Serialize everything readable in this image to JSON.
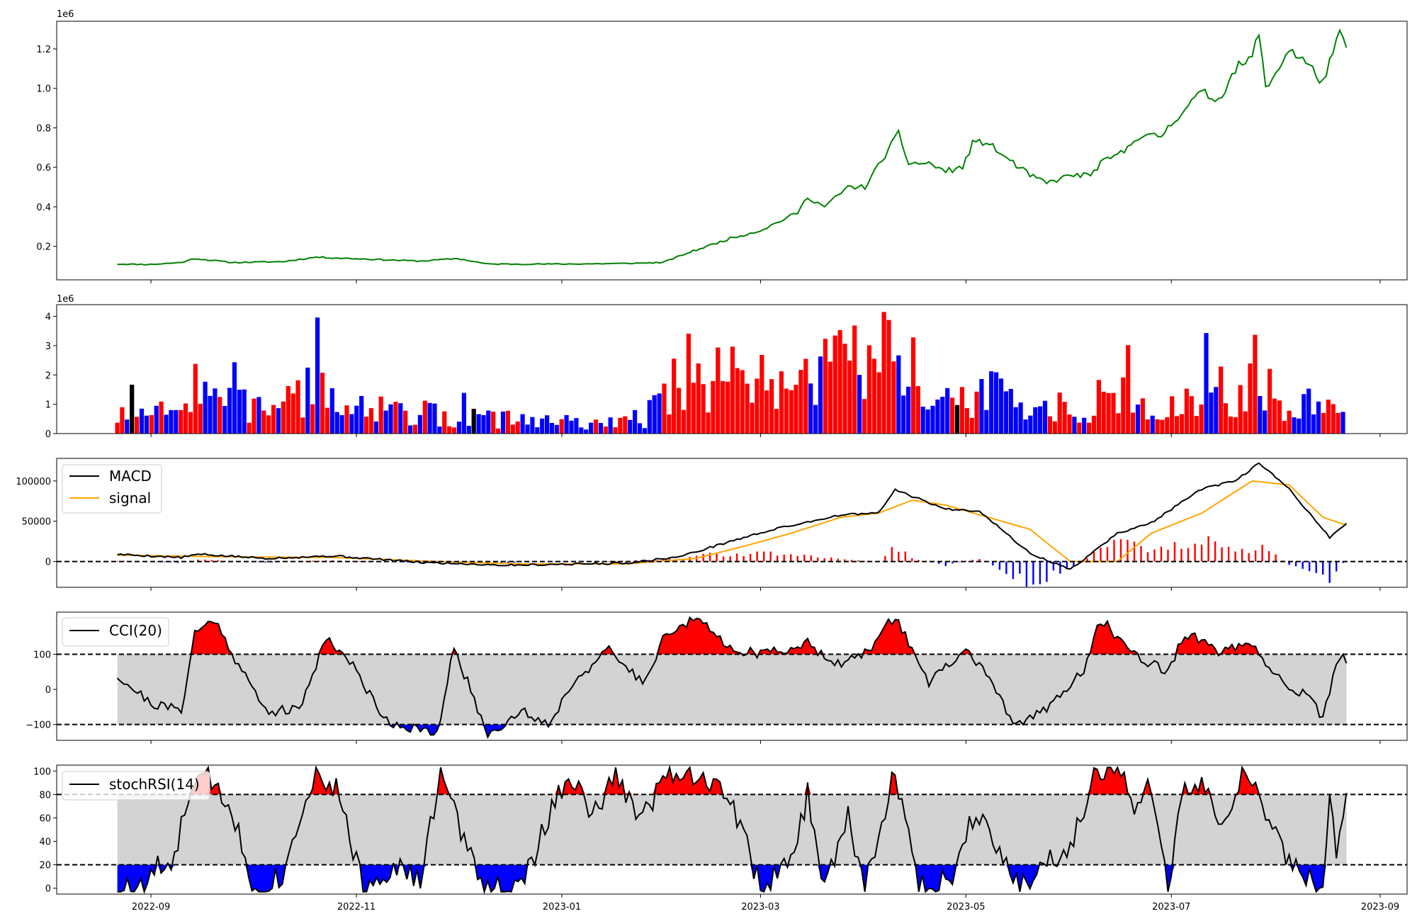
{
  "colors": {
    "price_line": "#008000",
    "up": "#ff0000",
    "down": "#0000ff",
    "neutral": "#000000",
    "macd": "#000000",
    "signal": "#ffa500",
    "band_fill": "#d3d3d3",
    "dashed": "#000000"
  },
  "x_axis": {
    "start": "2022-08-22",
    "end": "2023-08-22",
    "xlim": [
      "2022-08-04",
      "2023-09-09"
    ],
    "ticks": [
      "2022-09-01",
      "2022-11-01",
      "2023-01-01",
      "2023-03-01",
      "2023-05-01",
      "2023-07-01",
      "2023-09-01"
    ],
    "tick_labels": [
      "2022-09",
      "2022-11",
      "2023-01",
      "2023-03",
      "2023-05",
      "2023-07",
      "2023-09"
    ]
  },
  "chart_data": [
    {
      "type": "line",
      "id": "price",
      "offset_label": "1e6",
      "ylim": [
        30000,
        1340000
      ],
      "yticks": [
        200000,
        400000,
        600000,
        800000,
        1000000,
        1200000
      ],
      "ytick_labels": [
        "0.2",
        "0.4",
        "0.6",
        "0.8",
        "1.0",
        "1.2"
      ],
      "points": [
        [
          "2022-08-22",
          110000
        ],
        [
          "2022-09-01",
          108000
        ],
        [
          "2022-09-10",
          118000
        ],
        [
          "2022-09-14",
          138000
        ],
        [
          "2022-09-25",
          118000
        ],
        [
          "2022-10-10",
          122000
        ],
        [
          "2022-10-20",
          145000
        ],
        [
          "2022-11-01",
          137000
        ],
        [
          "2022-11-20",
          125000
        ],
        [
          "2022-12-01",
          138000
        ],
        [
          "2022-12-10",
          110000
        ],
        [
          "2023-01-01",
          110000
        ],
        [
          "2023-01-20",
          113000
        ],
        [
          "2023-01-31",
          118000
        ],
        [
          "2023-02-08",
          170000
        ],
        [
          "2023-02-20",
          240000
        ],
        [
          "2023-03-01",
          280000
        ],
        [
          "2023-03-12",
          370000
        ],
        [
          "2023-03-15",
          450000
        ],
        [
          "2023-03-20",
          400000
        ],
        [
          "2023-03-27",
          500000
        ],
        [
          "2023-04-01",
          500000
        ],
        [
          "2023-04-11",
          770000
        ],
        [
          "2023-04-14",
          620000
        ],
        [
          "2023-04-20",
          620000
        ],
        [
          "2023-04-25",
          580000
        ],
        [
          "2023-04-30",
          600000
        ],
        [
          "2023-05-03",
          720000
        ],
        [
          "2023-05-07",
          730000
        ],
        [
          "2023-05-12",
          660000
        ],
        [
          "2023-05-20",
          560000
        ],
        [
          "2023-05-25",
          520000
        ],
        [
          "2023-06-01",
          560000
        ],
        [
          "2023-06-07",
          560000
        ],
        [
          "2023-06-10",
          620000
        ],
        [
          "2023-06-17",
          680000
        ],
        [
          "2023-06-20",
          750000
        ],
        [
          "2023-06-28",
          760000
        ],
        [
          "2023-07-05",
          900000
        ],
        [
          "2023-07-10",
          980000
        ],
        [
          "2023-07-15",
          940000
        ],
        [
          "2023-07-20",
          1100000
        ],
        [
          "2023-07-25",
          1150000
        ],
        [
          "2023-07-27",
          1300000
        ],
        [
          "2023-07-29",
          990000
        ],
        [
          "2023-08-05",
          1200000
        ],
        [
          "2023-08-10",
          1130000
        ],
        [
          "2023-08-15",
          1030000
        ],
        [
          "2023-08-20",
          1270000
        ],
        [
          "2023-08-22",
          1220000
        ]
      ]
    },
    {
      "type": "bar",
      "id": "volume",
      "offset_label": "1e6",
      "ylim": [
        0,
        4400000
      ],
      "yticks": [
        0,
        1000000,
        2000000,
        3000000,
        4000000
      ],
      "ytick_labels": [
        "0",
        "1",
        "2",
        "3",
        "4"
      ],
      "anchors": [
        [
          "2022-08-22",
          550000
        ],
        [
          "2022-09-10",
          700000
        ],
        [
          "2022-09-15",
          1800000
        ],
        [
          "2022-09-20",
          1200000
        ],
        [
          "2022-10-01",
          850000
        ],
        [
          "2022-10-20",
          1400000
        ],
        [
          "2022-11-10",
          800000
        ],
        [
          "2022-12-01",
          550000
        ],
        [
          "2023-01-01",
          380000
        ],
        [
          "2023-01-25",
          350000
        ],
        [
          "2023-02-05",
          2200000
        ],
        [
          "2023-02-15",
          1800000
        ],
        [
          "2023-03-10",
          1600000
        ],
        [
          "2023-03-20",
          2000000
        ],
        [
          "2023-04-10",
          2400000
        ],
        [
          "2023-04-25",
          1100000
        ],
        [
          "2023-05-10",
          1300000
        ],
        [
          "2023-05-25",
          700000
        ],
        [
          "2023-06-05",
          650000
        ],
        [
          "2023-06-15",
          1200000
        ],
        [
          "2023-06-30",
          800000
        ],
        [
          "2023-07-10",
          1200000
        ],
        [
          "2023-07-25",
          1600000
        ],
        [
          "2023-08-05",
          1000000
        ],
        [
          "2023-08-22",
          850000
        ]
      ]
    },
    {
      "type": "line",
      "id": "macd",
      "ylim": [
        -32000,
        128000
      ],
      "yticks": [
        0,
        50000,
        100000
      ],
      "ytick_labels": [
        "0",
        "50000",
        "100000"
      ],
      "series": [
        {
          "name": "MACD",
          "points": [
            [
              "2022-08-22",
              9000
            ],
            [
              "2022-09-10",
              5000
            ],
            [
              "2022-09-15",
              9000
            ],
            [
              "2022-10-05",
              4000
            ],
            [
              "2022-10-25",
              7000
            ],
            [
              "2022-11-20",
              -1000
            ],
            [
              "2022-12-15",
              -4500
            ],
            [
              "2023-01-20",
              -2000
            ],
            [
              "2023-02-05",
              6000
            ],
            [
              "2023-02-20",
              25000
            ],
            [
              "2023-03-05",
              40000
            ],
            [
              "2023-03-25",
              58000
            ],
            [
              "2023-04-05",
              60000
            ],
            [
              "2023-04-10",
              89000
            ],
            [
              "2023-04-25",
              65000
            ],
            [
              "2023-05-05",
              63000
            ],
            [
              "2023-05-20",
              10000
            ],
            [
              "2023-06-01",
              -10000
            ],
            [
              "2023-06-15",
              35000
            ],
            [
              "2023-06-25",
              48000
            ],
            [
              "2023-07-10",
              90000
            ],
            [
              "2023-07-20",
              100000
            ],
            [
              "2023-07-27",
              122000
            ],
            [
              "2023-08-05",
              90000
            ],
            [
              "2023-08-17",
              30000
            ],
            [
              "2023-08-22",
              47000
            ]
          ]
        },
        {
          "name": "signal",
          "points": [
            [
              "2022-08-22",
              8000
            ],
            [
              "2022-09-20",
              6000
            ],
            [
              "2022-10-25",
              5000
            ],
            [
              "2022-11-25",
              0
            ],
            [
              "2022-12-20",
              -3000
            ],
            [
              "2023-01-20",
              -3000
            ],
            [
              "2023-02-10",
              4000
            ],
            [
              "2023-02-25",
              20000
            ],
            [
              "2023-03-10",
              35000
            ],
            [
              "2023-03-25",
              55000
            ],
            [
              "2023-04-05",
              60000
            ],
            [
              "2023-04-15",
              76000
            ],
            [
              "2023-04-25",
              70000
            ],
            [
              "2023-05-05",
              58000
            ],
            [
              "2023-05-20",
              40000
            ],
            [
              "2023-06-01",
              0
            ],
            [
              "2023-06-15",
              0
            ],
            [
              "2023-06-25",
              35000
            ],
            [
              "2023-07-10",
              60000
            ],
            [
              "2023-07-25",
              100000
            ],
            [
              "2023-08-05",
              95000
            ],
            [
              "2023-08-15",
              55000
            ],
            [
              "2023-08-22",
              45000
            ]
          ]
        }
      ],
      "legend": [
        "MACD",
        "signal"
      ],
      "legend_position": "upper-left"
    },
    {
      "type": "area",
      "id": "cci",
      "ylim": [
        -145,
        220
      ],
      "yticks": [
        -100,
        0,
        100
      ],
      "ytick_labels": [
        "−100",
        "0",
        "100"
      ],
      "bands": [
        -100,
        100
      ],
      "series": [
        {
          "name": "CCI(20)",
          "points": [
            [
              "2022-08-22",
              40
            ],
            [
              "2022-09-01",
              -40
            ],
            [
              "2022-09-10",
              -60
            ],
            [
              "2022-09-14",
              160
            ],
            [
              "2022-09-20",
              200
            ],
            [
              "2022-09-27",
              70
            ],
            [
              "2022-10-05",
              -60
            ],
            [
              "2022-10-15",
              -60
            ],
            [
              "2022-10-23",
              150
            ],
            [
              "2022-10-30",
              80
            ],
            [
              "2022-11-10",
              -90
            ],
            [
              "2022-11-25",
              -130
            ],
            [
              "2022-11-30",
              120
            ],
            [
              "2022-12-10",
              -130
            ],
            [
              "2022-12-20",
              -60
            ],
            [
              "2022-12-28",
              -100
            ],
            [
              "2023-01-05",
              30
            ],
            [
              "2023-01-15",
              110
            ],
            [
              "2023-01-25",
              20
            ],
            [
              "2023-02-01",
              160
            ],
            [
              "2023-02-10",
              200
            ],
            [
              "2023-02-20",
              120
            ],
            [
              "2023-03-01",
              100
            ],
            [
              "2023-03-15",
              130
            ],
            [
              "2023-03-25",
              70
            ],
            [
              "2023-04-01",
              100
            ],
            [
              "2023-04-10",
              210
            ],
            [
              "2023-04-20",
              20
            ],
            [
              "2023-05-01",
              110
            ],
            [
              "2023-05-08",
              40
            ],
            [
              "2023-05-15",
              -110
            ],
            [
              "2023-05-25",
              -50
            ],
            [
              "2023-06-05",
              50
            ],
            [
              "2023-06-10",
              200
            ],
            [
              "2023-06-20",
              100
            ],
            [
              "2023-06-30",
              50
            ],
            [
              "2023-07-05",
              160
            ],
            [
              "2023-07-15",
              110
            ],
            [
              "2023-07-25",
              120
            ],
            [
              "2023-08-01",
              40
            ],
            [
              "2023-08-10",
              -20
            ],
            [
              "2023-08-15",
              -80
            ],
            [
              "2023-08-20",
              100
            ],
            [
              "2023-08-22",
              80
            ]
          ]
        }
      ],
      "legend": [
        "CCI(20)"
      ],
      "legend_position": "upper-left"
    },
    {
      "type": "area",
      "id": "stochrsi",
      "ylim": [
        -5,
        105
      ],
      "yticks": [
        0,
        20,
        40,
        60,
        80,
        100
      ],
      "ytick_labels": [
        "0",
        "20",
        "40",
        "60",
        "80",
        "100"
      ],
      "bands": [
        20,
        80
      ],
      "series": [
        {
          "name": "stochRSI(14)",
          "points": [
            [
              "2022-08-22",
              0
            ],
            [
              "2022-08-30",
              0
            ],
            [
              "2022-09-03",
              20
            ],
            [
              "2022-09-07",
              10
            ],
            [
              "2022-09-12",
              80
            ],
            [
              "2022-09-18",
              95
            ],
            [
              "2022-09-25",
              70
            ],
            [
              "2022-10-01",
              0
            ],
            [
              "2022-10-10",
              10
            ],
            [
              "2022-10-17",
              80
            ],
            [
              "2022-10-20",
              100
            ],
            [
              "2022-10-27",
              80
            ],
            [
              "2022-11-03",
              0
            ],
            [
              "2022-11-12",
              20
            ],
            [
              "2022-11-20",
              5
            ],
            [
              "2022-11-26",
              100
            ],
            [
              "2022-12-03",
              40
            ],
            [
              "2022-12-10",
              0
            ],
            [
              "2022-12-20",
              0
            ],
            [
              "2022-12-28",
              60
            ],
            [
              "2023-01-03",
              100
            ],
            [
              "2023-01-10",
              60
            ],
            [
              "2023-01-17",
              95
            ],
            [
              "2023-01-25",
              60
            ],
            [
              "2023-02-01",
              100
            ],
            [
              "2023-02-07",
              100
            ],
            [
              "2023-02-20",
              80
            ],
            [
              "2023-03-01",
              0
            ],
            [
              "2023-03-10",
              20
            ],
            [
              "2023-03-15",
              80
            ],
            [
              "2023-03-20",
              0
            ],
            [
              "2023-03-27",
              60
            ],
            [
              "2023-04-01",
              0
            ],
            [
              "2023-04-10",
              100
            ],
            [
              "2023-04-17",
              0
            ],
            [
              "2023-04-27",
              10
            ],
            [
              "2023-05-04",
              70
            ],
            [
              "2023-05-12",
              30
            ],
            [
              "2023-05-17",
              0
            ],
            [
              "2023-05-24",
              20
            ],
            [
              "2023-06-02",
              40
            ],
            [
              "2023-06-08",
              100
            ],
            [
              "2023-06-15",
              100
            ],
            [
              "2023-06-20",
              70
            ],
            [
              "2023-06-25",
              85
            ],
            [
              "2023-06-30",
              0
            ],
            [
              "2023-07-05",
              90
            ],
            [
              "2023-07-10",
              85
            ],
            [
              "2023-07-17",
              50
            ],
            [
              "2023-07-22",
              100
            ],
            [
              "2023-07-27",
              80
            ],
            [
              "2023-08-05",
              20
            ],
            [
              "2023-08-15",
              0
            ],
            [
              "2023-08-17",
              70
            ],
            [
              "2023-08-19",
              30
            ],
            [
              "2023-08-22",
              80
            ]
          ]
        }
      ],
      "legend": [
        "stochRSI(14)"
      ],
      "legend_position": "upper-left"
    }
  ]
}
